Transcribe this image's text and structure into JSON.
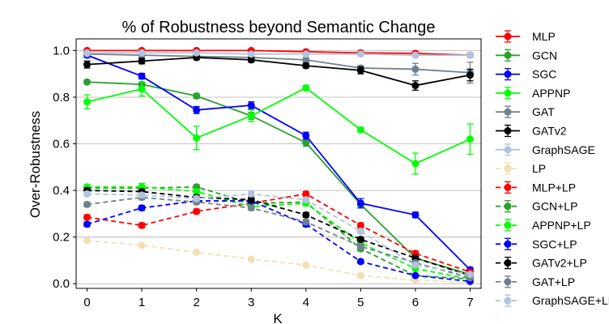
{
  "chart_data": {
    "type": "line",
    "title": "% of Robustness beyond Semantic Change",
    "xlabel": "K",
    "ylabel": "Over-Robustness",
    "x": [
      0,
      1,
      2,
      3,
      4,
      5,
      6,
      7
    ],
    "x_ticks": [
      "0",
      "1",
      "2",
      "3",
      "4",
      "5",
      "6",
      "7"
    ],
    "y_ticks": [
      "0.0",
      "0.2",
      "0.4",
      "0.6",
      "0.8",
      "1.0"
    ],
    "xlim": [
      -0.2,
      7.2
    ],
    "ylim": [
      -0.02,
      1.05
    ],
    "grid": "horizontal",
    "legend_position": "right-outside",
    "series": [
      {
        "name": "MLP",
        "color": "#ff0000",
        "dashed": false,
        "values": [
          1.0,
          1.0,
          1.0,
          1.0,
          0.995,
          0.99,
          0.988,
          0.98
        ],
        "errors": [
          0.005,
          0.005,
          0.005,
          0.005,
          0.005,
          0.005,
          0.005,
          0.008
        ]
      },
      {
        "name": "GCN",
        "color": "#2ca02c",
        "dashed": false,
        "values": [
          0.865,
          0.855,
          0.805,
          0.72,
          0.605,
          0.34,
          0.11,
          0.04
        ],
        "errors": [
          0.008,
          0.01,
          0.01,
          0.015,
          0.015,
          0.015,
          0.01,
          0.01
        ]
      },
      {
        "name": "SGC",
        "color": "#0000ff",
        "dashed": false,
        "values": [
          0.98,
          0.89,
          0.745,
          0.765,
          0.635,
          0.345,
          0.295,
          0.06
        ],
        "errors": [
          0.01,
          0.012,
          0.015,
          0.015,
          0.015,
          0.02,
          0.012,
          0.01
        ]
      },
      {
        "name": "APPNP",
        "color": "#00ff00",
        "dashed": false,
        "values": [
          0.78,
          0.835,
          0.625,
          0.72,
          0.84,
          0.66,
          0.515,
          0.62
        ],
        "errors": [
          0.03,
          0.03,
          0.05,
          0.025,
          0.01,
          0.01,
          0.045,
          0.065
        ]
      },
      {
        "name": "GAT",
        "color": "#708090",
        "dashed": false,
        "values": [
          0.985,
          0.98,
          0.975,
          0.97,
          0.96,
          0.925,
          0.92,
          0.905
        ],
        "errors": [
          0.005,
          0.005,
          0.005,
          0.005,
          0.01,
          0.01,
          0.025,
          0.045
        ]
      },
      {
        "name": "GATv2",
        "color": "#000000",
        "dashed": false,
        "values": [
          0.94,
          0.955,
          0.97,
          0.96,
          0.935,
          0.915,
          0.85,
          0.895
        ],
        "errors": [
          0.015,
          0.012,
          0.01,
          0.01,
          0.01,
          0.015,
          0.02,
          0.025
        ]
      },
      {
        "name": "GraphSAGE",
        "color": "#b0c4de",
        "dashed": false,
        "values": [
          0.99,
          0.99,
          0.99,
          0.985,
          0.985,
          0.985,
          0.98,
          0.98
        ],
        "errors": [
          0.005,
          0.005,
          0.005,
          0.005,
          0.005,
          0.005,
          0.005,
          0.005
        ]
      },
      {
        "name": "LP",
        "color": "#f5deb3",
        "dashed": true,
        "values": [
          0.185,
          0.165,
          0.135,
          0.105,
          0.08,
          0.035,
          0.015,
          0.005
        ],
        "errors": [
          0.005,
          0.005,
          0.005,
          0.005,
          0.005,
          0.005,
          0.005,
          0.005
        ]
      },
      {
        "name": "MLP+LP",
        "color": "#ff0000",
        "dashed": true,
        "values": [
          0.285,
          0.25,
          0.31,
          0.345,
          0.385,
          0.25,
          0.13,
          0.05
        ],
        "errors": [
          0.01,
          0.01,
          0.01,
          0.01,
          0.01,
          0.01,
          0.01,
          0.008
        ]
      },
      {
        "name": "GCN+LP",
        "color": "#2ca02c",
        "dashed": true,
        "values": [
          0.41,
          0.41,
          0.415,
          0.345,
          0.35,
          0.15,
          0.035,
          0.02
        ],
        "errors": [
          0.01,
          0.01,
          0.01,
          0.01,
          0.01,
          0.01,
          0.005,
          0.005
        ]
      },
      {
        "name": "APPNP+LP",
        "color": "#00ff00",
        "dashed": true,
        "values": [
          0.415,
          0.415,
          0.395,
          0.33,
          0.345,
          0.175,
          0.065,
          0.02
        ],
        "errors": [
          0.01,
          0.015,
          0.01,
          0.01,
          0.01,
          0.01,
          0.008,
          0.005
        ]
      },
      {
        "name": "SGC+LP",
        "color": "#0000ff",
        "dashed": true,
        "values": [
          0.255,
          0.325,
          0.355,
          0.355,
          0.255,
          0.095,
          0.035,
          0.01
        ],
        "errors": [
          0.01,
          0.01,
          0.01,
          0.01,
          0.01,
          0.008,
          0.005,
          0.005
        ]
      },
      {
        "name": "GATv2+LP",
        "color": "#000000",
        "dashed": true,
        "values": [
          0.4,
          0.395,
          0.37,
          0.36,
          0.295,
          0.19,
          0.11,
          0.035
        ],
        "errors": [
          0.01,
          0.01,
          0.01,
          0.01,
          0.01,
          0.01,
          0.008,
          0.005
        ]
      },
      {
        "name": "GAT+LP",
        "color": "#708090",
        "dashed": true,
        "values": [
          0.34,
          0.37,
          0.35,
          0.325,
          0.265,
          0.16,
          0.09,
          0.025
        ],
        "errors": [
          0.01,
          0.01,
          0.01,
          0.01,
          0.01,
          0.01,
          0.008,
          0.005
        ]
      },
      {
        "name": "GraphSAGE+LP",
        "color": "#b0c4de",
        "dashed": true,
        "values": [
          0.385,
          0.38,
          0.365,
          0.385,
          0.36,
          0.225,
          0.08,
          0.04
        ],
        "errors": [
          0.01,
          0.01,
          0.01,
          0.01,
          0.01,
          0.01,
          0.008,
          0.005
        ]
      }
    ]
  }
}
